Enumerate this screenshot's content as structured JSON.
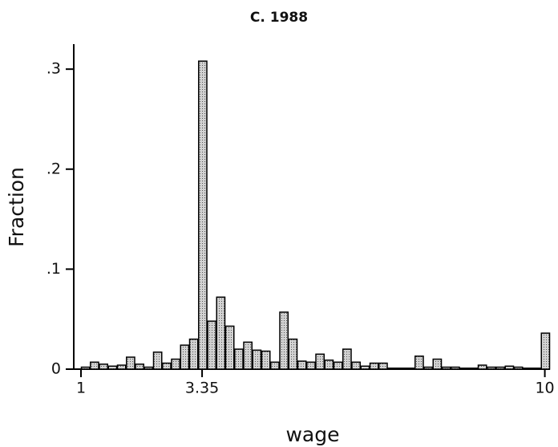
{
  "chart_data": {
    "type": "histogram",
    "title": "C. 1988",
    "x_label": "wage",
    "y_label": "Fraction",
    "bins": [
      1,
      1.175,
      1.35,
      1.525,
      1.7,
      1.875,
      2.05,
      2.225,
      2.4,
      2.575,
      2.75,
      2.925,
      3.1,
      3.275,
      3.45,
      3.625,
      3.8,
      3.975,
      4.15,
      4.325,
      4.5,
      4.675,
      4.85,
      5.025,
      5.2,
      5.375,
      5.55,
      5.725,
      5.9,
      6.075,
      6.25,
      6.425,
      6.6,
      6.775,
      6.95,
      7.125,
      7.3,
      7.475,
      7.65,
      7.825,
      8,
      8.175,
      8.35,
      8.525,
      8.7,
      8.875,
      9.05,
      9.225,
      9.4,
      9.575,
      9.75,
      9.925,
      10.1
    ],
    "values": [
      0.002,
      0.007,
      0.005,
      0.003,
      0.004,
      0.012,
      0.005,
      0.002,
      0.017,
      0.006,
      0.01,
      0.024,
      0.03,
      0.308,
      0.048,
      0.072,
      0.043,
      0.02,
      0.027,
      0.019,
      0.018,
      0.007,
      0.057,
      0.03,
      0.008,
      0.007,
      0.015,
      0.009,
      0.007,
      0.02,
      0.007,
      0.003,
      0.006,
      0.006,
      0.001,
      0.001,
      0.001,
      0.013,
      0.002,
      0.01,
      0.002,
      0.002,
      0.001,
      0.001,
      0.004,
      0.002,
      0.002,
      0.003,
      0.002,
      0.001,
      0.001,
      0.036
    ],
    "color": "#b8b8b8",
    "xlim": [
      0.86,
      10.1
    ],
    "ylim": [
      0,
      0.325
    ],
    "xticks": [
      1,
      3.35,
      10
    ],
    "yticks": [
      0,
      {
        "value": 0.1,
        "label": ".1"
      },
      {
        "value": 0.2,
        "label": ".2"
      },
      {
        "value": 0.3,
        "label": ".3"
      }
    ]
  }
}
